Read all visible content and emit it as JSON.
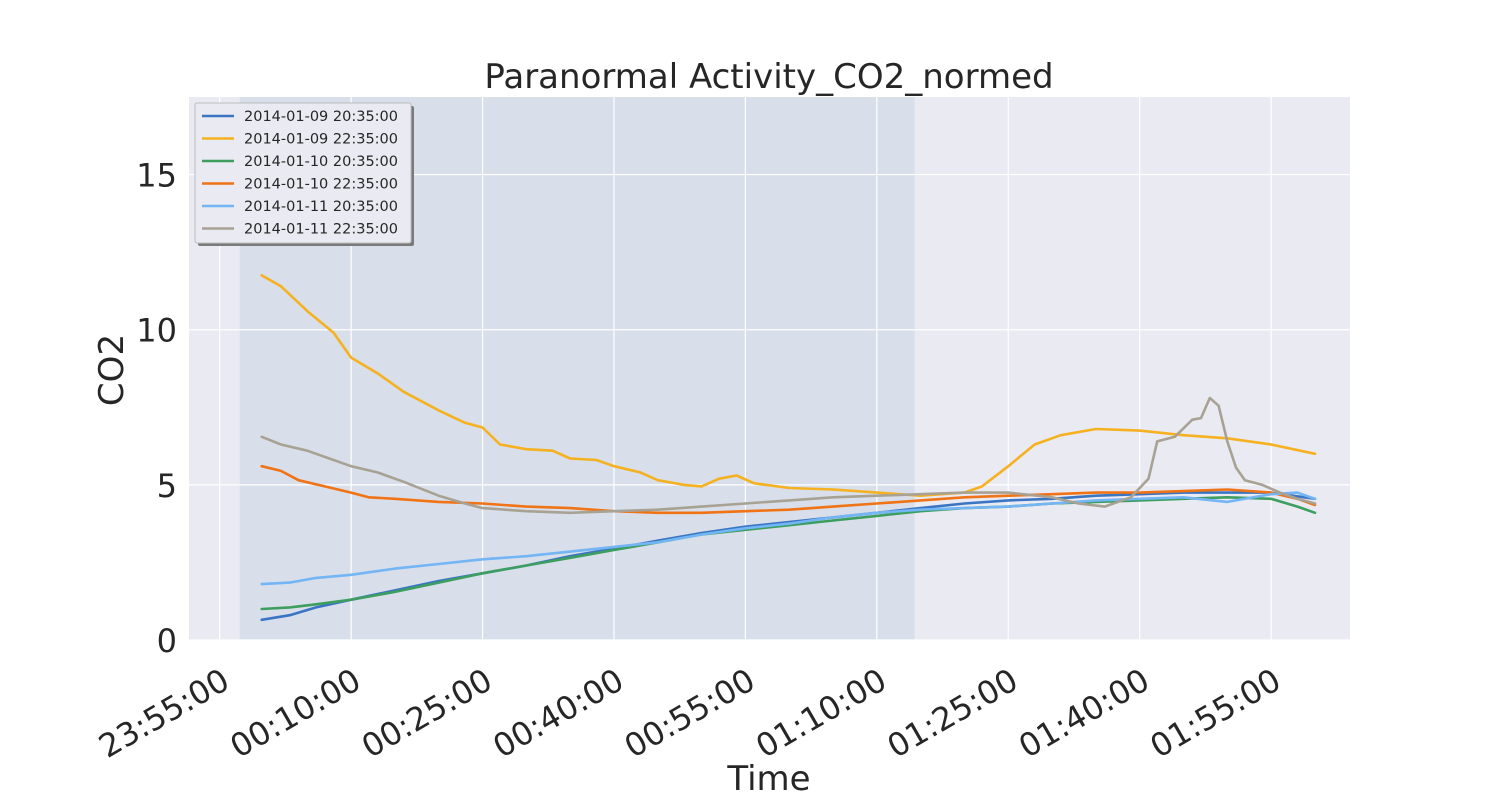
{
  "chart_data": {
    "type": "line",
    "title": "Paranormal Activity_CO2_normed",
    "xlabel": "Time",
    "ylabel": "CO2",
    "x_unit": "minutes",
    "xlim": [
      -8.5,
      124
    ],
    "ylim": [
      0,
      17.5
    ],
    "x_ticks": [
      {
        "value": -5,
        "label": "23:55:00"
      },
      {
        "value": 10,
        "label": "00:10:00"
      },
      {
        "value": 25,
        "label": "00:25:00"
      },
      {
        "value": 40,
        "label": "00:40:00"
      },
      {
        "value": 55,
        "label": "00:55:00"
      },
      {
        "value": 70,
        "label": "01:10:00"
      },
      {
        "value": 85,
        "label": "01:25:00"
      },
      {
        "value": 100,
        "label": "01:40:00"
      },
      {
        "value": 115,
        "label": "01:55:00"
      }
    ],
    "y_ticks": [
      {
        "value": 0,
        "label": "0"
      },
      {
        "value": 5,
        "label": "5"
      },
      {
        "value": 10,
        "label": "10"
      },
      {
        "value": 15,
        "label": "15"
      }
    ],
    "shaded_region": {
      "x_start": -2.7,
      "x_end": 74.3,
      "color": "#d8dfea"
    },
    "plot_background": "#eaeaf2",
    "grid": true,
    "legend_position": "top-left",
    "series": [
      {
        "name": "2014-01-09 20:35:00",
        "color": "#3a75c4",
        "points": [
          [
            -0.2,
            0.65
          ],
          [
            3,
            0.8
          ],
          [
            6,
            1.05
          ],
          [
            10,
            1.3
          ],
          [
            15,
            1.6
          ],
          [
            20,
            1.9
          ],
          [
            25,
            2.15
          ],
          [
            30,
            2.4
          ],
          [
            35,
            2.7
          ],
          [
            40,
            2.95
          ],
          [
            45,
            3.2
          ],
          [
            50,
            3.45
          ],
          [
            55,
            3.65
          ],
          [
            60,
            3.8
          ],
          [
            65,
            3.95
          ],
          [
            70,
            4.1
          ],
          [
            75,
            4.25
          ],
          [
            80,
            4.4
          ],
          [
            85,
            4.5
          ],
          [
            90,
            4.55
          ],
          [
            95,
            4.65
          ],
          [
            100,
            4.7
          ],
          [
            105,
            4.75
          ],
          [
            110,
            4.75
          ],
          [
            115,
            4.75
          ],
          [
            120,
            4.55
          ]
        ]
      },
      {
        "name": "2014-01-09 22:35:00",
        "color": "#f5b120",
        "points": [
          [
            -0.2,
            11.75
          ],
          [
            2,
            11.4
          ],
          [
            5,
            10.6
          ],
          [
            8,
            9.9
          ],
          [
            10,
            9.1
          ],
          [
            13,
            8.6
          ],
          [
            16,
            8.0
          ],
          [
            20,
            7.4
          ],
          [
            23,
            7.0
          ],
          [
            25,
            6.85
          ],
          [
            27,
            6.3
          ],
          [
            30,
            6.15
          ],
          [
            33,
            6.1
          ],
          [
            35,
            5.85
          ],
          [
            38,
            5.8
          ],
          [
            40,
            5.6
          ],
          [
            43,
            5.4
          ],
          [
            45,
            5.15
          ],
          [
            48,
            5.0
          ],
          [
            50,
            4.95
          ],
          [
            52,
            5.2
          ],
          [
            54,
            5.3
          ],
          [
            56,
            5.05
          ],
          [
            60,
            4.9
          ],
          [
            65,
            4.85
          ],
          [
            70,
            4.75
          ],
          [
            75,
            4.65
          ],
          [
            80,
            4.75
          ],
          [
            82,
            4.95
          ],
          [
            85,
            5.6
          ],
          [
            88,
            6.3
          ],
          [
            91,
            6.6
          ],
          [
            95,
            6.8
          ],
          [
            100,
            6.75
          ],
          [
            105,
            6.6
          ],
          [
            110,
            6.5
          ],
          [
            115,
            6.3
          ],
          [
            120,
            6.0
          ]
        ]
      },
      {
        "name": "2014-01-10 20:35:00",
        "color": "#3d9e5f",
        "points": [
          [
            -0.2,
            1.0
          ],
          [
            3,
            1.05
          ],
          [
            6,
            1.15
          ],
          [
            10,
            1.3
          ],
          [
            15,
            1.55
          ],
          [
            20,
            1.85
          ],
          [
            25,
            2.15
          ],
          [
            30,
            2.4
          ],
          [
            35,
            2.65
          ],
          [
            40,
            2.9
          ],
          [
            45,
            3.15
          ],
          [
            50,
            3.4
          ],
          [
            55,
            3.55
          ],
          [
            60,
            3.7
          ],
          [
            65,
            3.85
          ],
          [
            70,
            4.0
          ],
          [
            75,
            4.15
          ],
          [
            80,
            4.25
          ],
          [
            85,
            4.3
          ],
          [
            90,
            4.4
          ],
          [
            95,
            4.45
          ],
          [
            100,
            4.5
          ],
          [
            105,
            4.55
          ],
          [
            110,
            4.6
          ],
          [
            115,
            4.55
          ],
          [
            118,
            4.3
          ],
          [
            120,
            4.1
          ]
        ]
      },
      {
        "name": "2014-01-10 22:35:00",
        "color": "#f07316",
        "points": [
          [
            -0.2,
            5.6
          ],
          [
            2,
            5.45
          ],
          [
            4,
            5.15
          ],
          [
            7,
            4.95
          ],
          [
            10,
            4.75
          ],
          [
            12,
            4.6
          ],
          [
            15,
            4.55
          ],
          [
            20,
            4.45
          ],
          [
            25,
            4.4
          ],
          [
            30,
            4.3
          ],
          [
            35,
            4.25
          ],
          [
            40,
            4.15
          ],
          [
            45,
            4.1
          ],
          [
            50,
            4.1
          ],
          [
            55,
            4.15
          ],
          [
            60,
            4.2
          ],
          [
            65,
            4.3
          ],
          [
            70,
            4.4
          ],
          [
            75,
            4.5
          ],
          [
            80,
            4.6
          ],
          [
            85,
            4.65
          ],
          [
            90,
            4.7
          ],
          [
            95,
            4.75
          ],
          [
            100,
            4.75
          ],
          [
            105,
            4.8
          ],
          [
            110,
            4.85
          ],
          [
            115,
            4.75
          ],
          [
            118,
            4.55
          ],
          [
            120,
            4.35
          ]
        ]
      },
      {
        "name": "2014-01-11 20:35:00",
        "color": "#73b5f5",
        "points": [
          [
            -0.2,
            1.8
          ],
          [
            3,
            1.85
          ],
          [
            6,
            2.0
          ],
          [
            10,
            2.1
          ],
          [
            15,
            2.3
          ],
          [
            20,
            2.45
          ],
          [
            25,
            2.6
          ],
          [
            30,
            2.7
          ],
          [
            35,
            2.85
          ],
          [
            40,
            3.0
          ],
          [
            45,
            3.15
          ],
          [
            50,
            3.4
          ],
          [
            55,
            3.6
          ],
          [
            60,
            3.75
          ],
          [
            65,
            3.95
          ],
          [
            70,
            4.1
          ],
          [
            75,
            4.2
          ],
          [
            80,
            4.25
          ],
          [
            85,
            4.3
          ],
          [
            90,
            4.4
          ],
          [
            95,
            4.5
          ],
          [
            100,
            4.55
          ],
          [
            105,
            4.6
          ],
          [
            110,
            4.45
          ],
          [
            115,
            4.7
          ],
          [
            118,
            4.75
          ],
          [
            120,
            4.55
          ]
        ]
      },
      {
        "name": "2014-01-11 22:35:00",
        "color": "#a8a294",
        "points": [
          [
            -0.2,
            6.55
          ],
          [
            2,
            6.3
          ],
          [
            5,
            6.1
          ],
          [
            8,
            5.8
          ],
          [
            10,
            5.6
          ],
          [
            13,
            5.4
          ],
          [
            16,
            5.1
          ],
          [
            20,
            4.65
          ],
          [
            23,
            4.4
          ],
          [
            25,
            4.25
          ],
          [
            30,
            4.15
          ],
          [
            35,
            4.1
          ],
          [
            40,
            4.15
          ],
          [
            45,
            4.2
          ],
          [
            50,
            4.3
          ],
          [
            55,
            4.4
          ],
          [
            60,
            4.5
          ],
          [
            65,
            4.6
          ],
          [
            70,
            4.65
          ],
          [
            75,
            4.7
          ],
          [
            80,
            4.75
          ],
          [
            85,
            4.75
          ],
          [
            90,
            4.6
          ],
          [
            93,
            4.4
          ],
          [
            96,
            4.3
          ],
          [
            99,
            4.6
          ],
          [
            101,
            5.2
          ],
          [
            102,
            6.4
          ],
          [
            104,
            6.55
          ],
          [
            106,
            7.1
          ],
          [
            107,
            7.15
          ],
          [
            108,
            7.8
          ],
          [
            109,
            7.55
          ],
          [
            110,
            6.4
          ],
          [
            111,
            5.55
          ],
          [
            112,
            5.15
          ],
          [
            114,
            5.0
          ],
          [
            116,
            4.75
          ],
          [
            118,
            4.55
          ],
          [
            120,
            4.4
          ]
        ]
      }
    ]
  }
}
